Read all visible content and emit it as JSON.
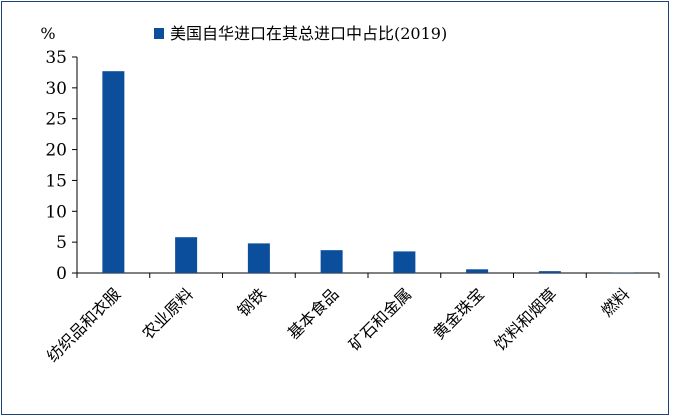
{
  "chart_data": {
    "type": "bar",
    "title": "",
    "xlabel": "",
    "ylabel": "%",
    "ylim": [
      0,
      35
    ],
    "yticks": [
      0,
      5,
      10,
      15,
      20,
      25,
      30,
      35
    ],
    "grid": false,
    "legend_position": "top",
    "categories": [
      "纺织品和衣服",
      "农业原料",
      "钢铁",
      "基本食品",
      "矿石和金属",
      "黄金珠宝",
      "饮料和烟草",
      "燃料"
    ],
    "series": [
      {
        "name": "美国自华进口在其总进口中占比(2019)",
        "color": "#0b4f9c",
        "values": [
          32.7,
          5.8,
          4.8,
          3.7,
          3.5,
          0.6,
          0.3,
          0.05
        ]
      }
    ]
  }
}
